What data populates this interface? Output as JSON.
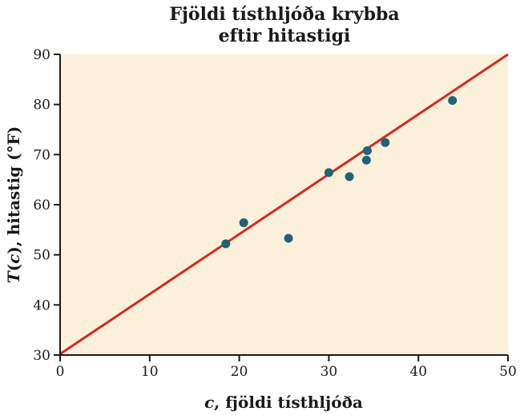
{
  "chart_data": {
    "type": "scatter",
    "title_lines": [
      "Fjöldi tísthljóða krybba",
      "eftir hitastigi"
    ],
    "xlabel_italic": "c",
    "xlabel_rest": ", fjöldi tísthljóða",
    "ylabel_italic_1": "T",
    "ylabel_paren_open": "(",
    "ylabel_italic_2": "c",
    "ylabel_rest": "), hitastig (°F)",
    "xlim": [
      0,
      50
    ],
    "ylim": [
      30,
      90
    ],
    "x_ticks": [
      "0",
      "10",
      "20",
      "30",
      "40",
      "50"
    ],
    "y_ticks": [
      "30",
      "40",
      "50",
      "60",
      "70",
      "80",
      "90"
    ],
    "points": [
      {
        "x": 18.5,
        "y": 52.2
      },
      {
        "x": 20.5,
        "y": 56.4
      },
      {
        "x": 25.5,
        "y": 53.3
      },
      {
        "x": 30.0,
        "y": 66.4
      },
      {
        "x": 32.3,
        "y": 65.6
      },
      {
        "x": 34.2,
        "y": 68.9
      },
      {
        "x": 34.3,
        "y": 70.8
      },
      {
        "x": 36.3,
        "y": 72.4
      },
      {
        "x": 43.8,
        "y": 80.8
      }
    ],
    "fit_line": {
      "x": [
        0,
        50
      ],
      "y": [
        30.2,
        90.0
      ]
    },
    "colors": {
      "plot_background": "#fbf0da",
      "point": "#1f6478",
      "line": "#d42a1e",
      "axis": "#1a1a1a"
    }
  }
}
